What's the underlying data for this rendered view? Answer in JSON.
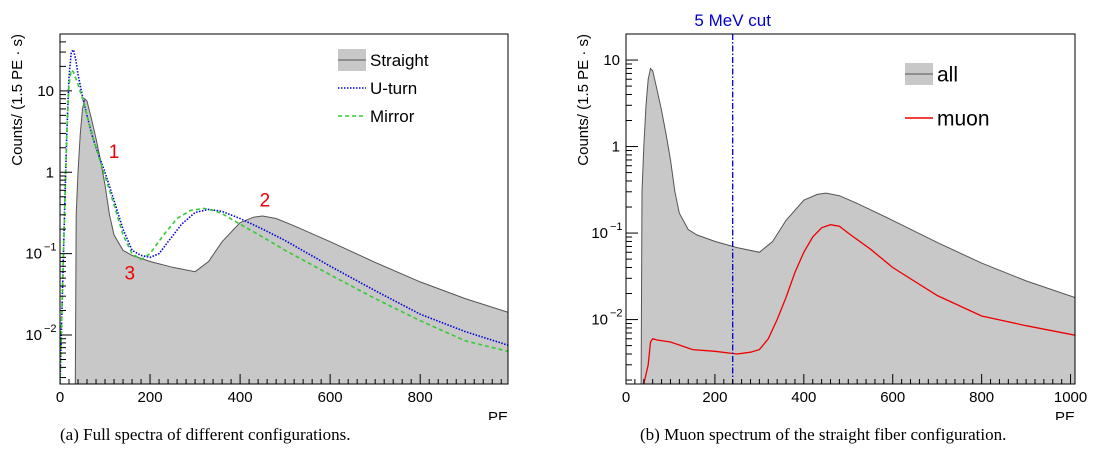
{
  "chart_data": [
    {
      "type": "area",
      "title": "",
      "caption": "(a) Full spectra of different configurations.",
      "xlabel": "PE",
      "ylabel": "Counts/ (1.5 PE · s)",
      "xlim": [
        0,
        995
      ],
      "ylim": [
        0.0025,
        50
      ],
      "yscale": "log",
      "grid": false,
      "legend_position": "top-right",
      "xticks": [
        0,
        200,
        400,
        600,
        800
      ],
      "yticks": [
        {
          "value": 0.01,
          "label": "10",
          "exp": "−2"
        },
        {
          "value": 0.1,
          "label": "10",
          "exp": "−1"
        },
        {
          "value": 1,
          "label": "1",
          "exp": ""
        },
        {
          "value": 10,
          "label": "10",
          "exp": ""
        }
      ],
      "series": [
        {
          "name": "Straight",
          "style": "filled",
          "color": "#555555",
          "fill": "#c8c8c8",
          "x": [
            0,
            34,
            36,
            40,
            45,
            50,
            55,
            60,
            70,
            80,
            90,
            100,
            110,
            120,
            140,
            160,
            200,
            250,
            300,
            330,
            360,
            400,
            430,
            450,
            480,
            520,
            600,
            700,
            800,
            900,
            995
          ],
          "y": [
            0.0025,
            0.0025,
            0.3,
            1.0,
            3.0,
            6.0,
            8.0,
            7.5,
            4.5,
            2.6,
            1.4,
            0.7,
            0.3,
            0.17,
            0.11,
            0.095,
            0.08,
            0.068,
            0.06,
            0.08,
            0.14,
            0.24,
            0.28,
            0.29,
            0.27,
            0.22,
            0.14,
            0.078,
            0.045,
            0.028,
            0.019
          ]
        },
        {
          "name": "U-turn",
          "style": "dotted",
          "color": "#0000dd",
          "x": [
            0,
            10,
            15,
            20,
            25,
            30,
            35,
            40,
            50,
            60,
            70,
            80,
            100,
            120,
            140,
            160,
            180,
            200,
            220,
            240,
            270,
            300,
            330,
            360,
            400,
            450,
            500,
            600,
            700,
            800,
            900,
            995
          ],
          "y": [
            0.0025,
            0.3,
            3.0,
            15,
            30,
            32,
            24,
            16,
            8.5,
            5.0,
            3.0,
            2.0,
            1.0,
            0.45,
            0.2,
            0.11,
            0.095,
            0.09,
            0.1,
            0.14,
            0.23,
            0.32,
            0.35,
            0.33,
            0.27,
            0.2,
            0.145,
            0.07,
            0.035,
            0.018,
            0.011,
            0.0075
          ]
        },
        {
          "name": "Mirror",
          "style": "dashed",
          "color": "#33cc33",
          "x": [
            0,
            10,
            15,
            20,
            25,
            30,
            40,
            50,
            60,
            80,
            100,
            120,
            140,
            160,
            180,
            200,
            230,
            260,
            290,
            320,
            340,
            360,
            400,
            450,
            500,
            600,
            700,
            800,
            900,
            995
          ],
          "y": [
            0.0025,
            0.3,
            3.0,
            12,
            18,
            17,
            12,
            8.0,
            5.0,
            2.0,
            0.9,
            0.4,
            0.17,
            0.1,
            0.085,
            0.1,
            0.17,
            0.27,
            0.34,
            0.36,
            0.34,
            0.31,
            0.23,
            0.16,
            0.11,
            0.055,
            0.028,
            0.015,
            0.0085,
            0.0063
          ]
        }
      ],
      "annotations": [
        {
          "text": "1",
          "x": 120,
          "y": 1.5
        },
        {
          "text": "2",
          "x": 455,
          "y": 0.38
        },
        {
          "text": "3",
          "x": 155,
          "y": 0.048
        }
      ]
    },
    {
      "type": "area",
      "title": "",
      "caption": "(b) Muon spectrum of the straight fiber configuration.",
      "xlabel": "PE",
      "ylabel": "Counts/ (1.5 PE · s)",
      "xlim": [
        0,
        1010
      ],
      "ylim": [
        0.0018,
        20
      ],
      "yscale": "log",
      "grid": false,
      "legend_position": "top-left",
      "xticks": [
        0,
        200,
        400,
        600,
        800,
        1000
      ],
      "yticks": [
        {
          "value": 0.01,
          "label": "10",
          "exp": "−2"
        },
        {
          "value": 0.1,
          "label": "10",
          "exp": "−1"
        },
        {
          "value": 1,
          "label": "1",
          "exp": ""
        },
        {
          "value": 10,
          "label": "10",
          "exp": ""
        }
      ],
      "series": [
        {
          "name": "all",
          "style": "filled",
          "color": "#555555",
          "fill": "#c8c8c8",
          "x": [
            0,
            34,
            36,
            40,
            45,
            50,
            55,
            60,
            70,
            80,
            90,
            100,
            110,
            120,
            140,
            160,
            200,
            250,
            300,
            330,
            360,
            400,
            430,
            450,
            480,
            520,
            600,
            700,
            800,
            900,
            1010
          ],
          "y": [
            0.0018,
            0.0018,
            0.3,
            1.0,
            3.0,
            6.0,
            8.0,
            7.5,
            4.5,
            2.6,
            1.4,
            0.7,
            0.3,
            0.17,
            0.11,
            0.095,
            0.08,
            0.068,
            0.06,
            0.08,
            0.14,
            0.24,
            0.28,
            0.29,
            0.27,
            0.22,
            0.14,
            0.078,
            0.045,
            0.028,
            0.018
          ]
        },
        {
          "name": "muon",
          "style": "line",
          "color": "#ee0000",
          "x": [
            40,
            50,
            55,
            60,
            70,
            100,
            150,
            200,
            250,
            280,
            300,
            320,
            340,
            360,
            380,
            400,
            420,
            440,
            460,
            480,
            500,
            550,
            600,
            700,
            800,
            900,
            1010
          ],
          "y": [
            0.0018,
            0.003,
            0.0055,
            0.006,
            0.0058,
            0.0055,
            0.0045,
            0.0043,
            0.004,
            0.0042,
            0.0045,
            0.006,
            0.01,
            0.018,
            0.035,
            0.06,
            0.09,
            0.115,
            0.125,
            0.12,
            0.1,
            0.065,
            0.04,
            0.019,
            0.011,
            0.0085,
            0.0066
          ]
        }
      ],
      "reference_lines": [
        {
          "label": "5 MeV cut",
          "x": 240,
          "color": "#0000cc",
          "style": "dash-dot"
        }
      ]
    }
  ]
}
